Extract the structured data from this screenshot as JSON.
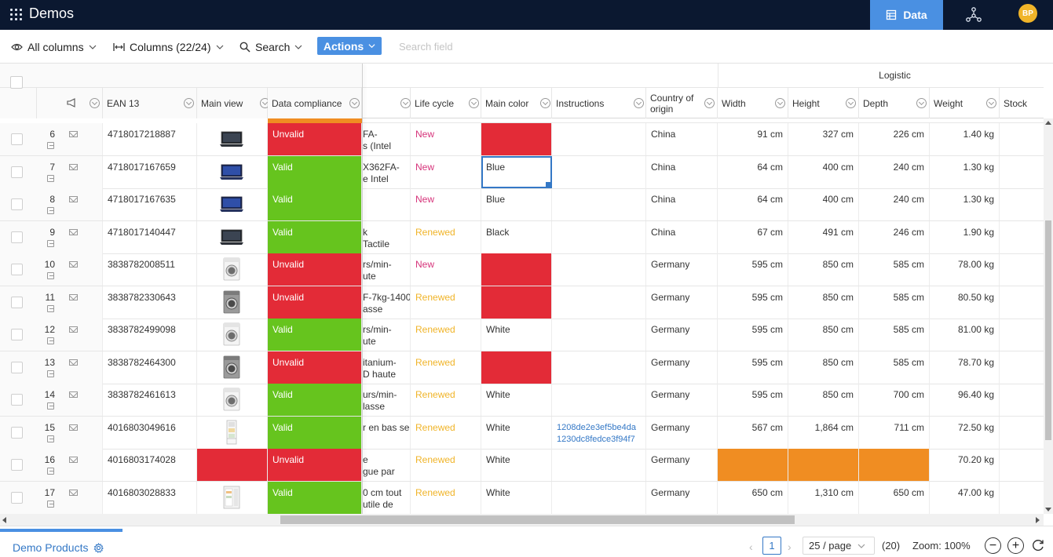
{
  "app": {
    "title": "Demos",
    "data_tab": "Data",
    "avatar_initials": "BP"
  },
  "toolbar": {
    "all_columns": "All columns",
    "columns": "Columns (22/24)",
    "search": "Search",
    "actions": "Actions",
    "search_placeholder": "Search field",
    "search_value": ""
  },
  "table": {
    "group_header": "Logistic",
    "columns": {
      "ean": "EAN 13",
      "main_view": "Main view",
      "data_compliance": "Data compliance",
      "life_cycle": "Life cycle",
      "main_color": "Main color",
      "instructions": "Instructions",
      "country": "Country of origin",
      "width": "Width",
      "height": "Height",
      "depth": "Depth",
      "weight": "Weight",
      "stock": "Stock"
    },
    "rows": [
      {
        "num": "6",
        "ean": "4718017218887",
        "thumb": "laptop-dark",
        "compliance": "Unvalid",
        "name": "FA-|s (Intel",
        "lifecycle": "New",
        "color": "",
        "color_state": "error",
        "instructions": "",
        "country": "China",
        "width": "91 cm",
        "height": "327 cm",
        "depth": "226 cm",
        "weight": "1.40 kg"
      },
      {
        "num": "7",
        "ean": "4718017167659",
        "thumb": "laptop-blue",
        "compliance": "Valid",
        "name": "X362FA-|e Intel",
        "lifecycle": "New",
        "color": "Blue",
        "color_state": "selected",
        "instructions": "",
        "country": "China",
        "width": "64 cm",
        "height": "400 cm",
        "depth": "240 cm",
        "weight": "1.30 kg"
      },
      {
        "num": "8",
        "ean": "4718017167635",
        "thumb": "laptop-blue",
        "compliance": "Valid",
        "name": "",
        "lifecycle": "New",
        "color": "Blue",
        "color_state": "ok",
        "instructions": "",
        "country": "China",
        "width": "64 cm",
        "height": "400 cm",
        "depth": "240 cm",
        "weight": "1.30 kg"
      },
      {
        "num": "9",
        "ean": "4718017140447",
        "thumb": "laptop-dark",
        "compliance": "Valid",
        "name": "k|Tactile",
        "lifecycle": "Renewed",
        "color": "Black",
        "color_state": "ok",
        "instructions": "",
        "country": "China",
        "width": "67 cm",
        "height": "491 cm",
        "depth": "246 cm",
        "weight": "1.90 kg"
      },
      {
        "num": "10",
        "ean": "3838782008511",
        "thumb": "washer-white",
        "compliance": "Unvalid",
        "name": "rs/min-|ute",
        "lifecycle": "New",
        "color": "",
        "color_state": "error",
        "instructions": "",
        "country": "Germany",
        "width": "595 cm",
        "height": "850 cm",
        "depth": "585 cm",
        "weight": "78.00 kg"
      },
      {
        "num": "11",
        "ean": "3838782330643",
        "thumb": "washer-grey",
        "compliance": "Unvalid",
        "name": "F-7kg-1400|asse",
        "lifecycle": "Renewed",
        "color": "",
        "color_state": "error",
        "instructions": "",
        "country": "Germany",
        "width": "595 cm",
        "height": "850 cm",
        "depth": "585 cm",
        "weight": "80.50 kg"
      },
      {
        "num": "12",
        "ean": "3838782499098",
        "thumb": "washer-white",
        "compliance": "Valid",
        "name": "rs/min-|ute",
        "lifecycle": "Renewed",
        "color": "White",
        "color_state": "ok",
        "instructions": "",
        "country": "Germany",
        "width": "595 cm",
        "height": "850 cm",
        "depth": "585 cm",
        "weight": "81.00 kg"
      },
      {
        "num": "13",
        "ean": "3838782464300",
        "thumb": "washer-grey",
        "compliance": "Unvalid",
        "name": "itanium-|D haute",
        "lifecycle": "Renewed",
        "color": "",
        "color_state": "error",
        "instructions": "",
        "country": "Germany",
        "width": "595 cm",
        "height": "850 cm",
        "depth": "585 cm",
        "weight": "78.70 kg"
      },
      {
        "num": "14",
        "ean": "3838782461613",
        "thumb": "washer-white",
        "compliance": "Valid",
        "name": "urs/min-|lasse",
        "lifecycle": "Renewed",
        "color": "White",
        "color_state": "ok",
        "instructions": "",
        "country": "Germany",
        "width": "595 cm",
        "height": "850 cm",
        "depth": "700 cm",
        "weight": "96.40 kg"
      },
      {
        "num": "15",
        "ean": "4016803049616",
        "thumb": "fridge",
        "compliance": "Valid",
        "name": "|r en bas se",
        "lifecycle": "Renewed",
        "color": "White",
        "color_state": "ok",
        "instructions": "1208de2e3ef5be4da1230dc8fedce3f94f7",
        "country": "Germany",
        "width": "567 cm",
        "height": "1,864 cm",
        "depth": "711 cm",
        "weight": "72.50 kg"
      },
      {
        "num": "16",
        "ean": "4016803174028",
        "thumb": "none",
        "compliance": "Unvalid",
        "name": "e|gue par",
        "lifecycle": "Renewed",
        "color": "White",
        "color_state": "ok",
        "instructions": "",
        "country": "Germany",
        "width": "",
        "height": "",
        "depth": "",
        "weight": "70.20 kg",
        "dims_state": "warning"
      },
      {
        "num": "17",
        "ean": "4016803028833",
        "thumb": "fridge-open",
        "compliance": "Valid",
        "name": "0 cm tout|utile de",
        "lifecycle": "Renewed",
        "color": "White",
        "color_state": "ok",
        "instructions": "",
        "country": "Germany",
        "width": "650 cm",
        "height": "1,310 cm",
        "depth": "650 cm",
        "weight": "47.00 kg"
      }
    ]
  },
  "footer": {
    "sheet_tab": "Demo Products",
    "page": "1",
    "page_size": "25 / page",
    "count": "(20)",
    "zoom": "Zoom: 100%"
  },
  "colors": {
    "accent": "#4a90e2",
    "valid": "#66c41e",
    "unvalid": "#e32b37",
    "warning": "#f08d22",
    "new": "#d6337a",
    "renewed": "#f0b429"
  }
}
